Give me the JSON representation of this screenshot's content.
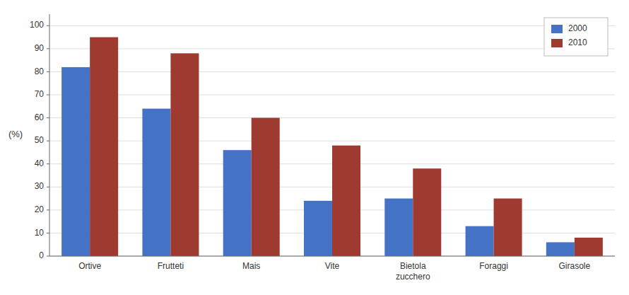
{
  "chart_data": {
    "type": "bar",
    "categories": [
      "Ortive",
      "Frutteti",
      "Mais",
      "Vite",
      "Bietola\nzucchero",
      "Foraggi",
      "Girasole"
    ],
    "series": [
      {
        "name": "2000",
        "color": "#4472C4",
        "values": [
          82,
          64,
          46,
          24,
          25,
          13,
          6
        ]
      },
      {
        "name": "2010",
        "color": "#9E3A2F",
        "values": [
          95,
          88,
          60,
          48,
          38,
          25,
          8
        ]
      }
    ],
    "y_label": "(%)",
    "ylim": [
      0,
      105
    ],
    "yticks": [
      0,
      10,
      20,
      30,
      40,
      50,
      60,
      70,
      80,
      90,
      100
    ],
    "grid": true,
    "legend": "upper right"
  }
}
